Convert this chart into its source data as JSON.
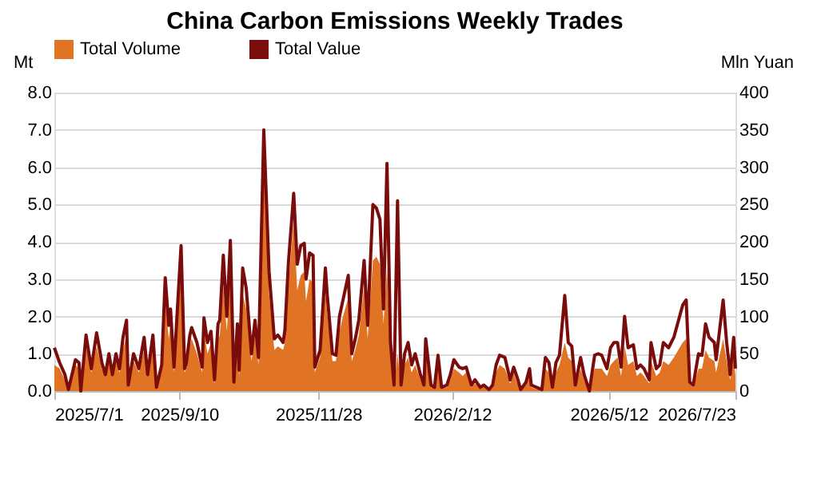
{
  "chart_data": {
    "type": "area",
    "title": "China Carbon Emissions Weekly Trades",
    "ylabel": "Mt",
    "y2label": "Mln Yuan",
    "x": [
      "2025-07-01",
      "2025-07-04",
      "2025-07-07",
      "2025-07-09",
      "2025-07-11",
      "2025-07-13",
      "2025-07-15",
      "2025-07-16",
      "2025-07-19",
      "2025-07-22",
      "2025-07-25",
      "2025-07-28",
      "2025-07-30",
      "2025-08-01",
      "2025-08-03",
      "2025-08-05",
      "2025-08-07",
      "2025-08-09",
      "2025-08-11",
      "2025-08-12",
      "2025-08-15",
      "2025-08-18",
      "2025-08-21",
      "2025-08-23",
      "2025-08-26",
      "2025-08-28",
      "2025-08-31",
      "2025-09-02",
      "2025-09-04",
      "2025-09-05",
      "2025-09-07",
      "2025-09-11",
      "2025-09-13",
      "2025-09-14",
      "2025-09-16",
      "2025-09-17",
      "2025-09-20",
      "2025-09-23",
      "2025-09-24",
      "2025-09-26",
      "2025-09-28",
      "2025-09-30",
      "2025-10-02",
      "2025-10-03",
      "2025-10-05",
      "2025-10-07",
      "2025-10-09",
      "2025-10-11",
      "2025-10-13",
      "2025-10-14",
      "2025-10-16",
      "2025-10-18",
      "2025-10-21",
      "2025-10-23",
      "2025-10-25",
      "2025-10-28",
      "2025-10-31",
      "2025-11-03",
      "2025-11-05",
      "2025-11-08",
      "2025-11-09",
      "2025-11-11",
      "2025-11-14",
      "2025-11-16",
      "2025-11-18",
      "2025-11-20",
      "2025-11-21",
      "2025-11-23",
      "2025-11-25",
      "2025-11-26",
      "2025-11-29",
      "2025-12-02",
      "2025-12-03",
      "2025-12-06",
      "2025-12-08",
      "2025-12-10",
      "2025-12-12",
      "2025-12-15",
      "2025-12-17",
      "2025-12-19",
      "2025-12-21",
      "2025-12-24",
      "2025-12-26",
      "2025-12-29",
      "2025-12-31",
      "2026-01-02",
      "2026-01-04",
      "2026-01-06",
      "2026-01-08",
      "2026-01-10",
      "2026-01-12",
      "2026-01-14",
      "2026-01-16",
      "2026-01-18",
      "2026-01-20",
      "2026-01-22",
      "2026-01-25",
      "2026-01-27",
      "2026-01-28",
      "2026-01-31",
      "2026-02-02",
      "2026-02-04",
      "2026-02-06",
      "2026-02-09",
      "2026-02-11",
      "2026-02-13",
      "2026-02-16",
      "2026-02-18",
      "2026-02-20",
      "2026-02-23",
      "2026-02-25",
      "2026-02-28",
      "2026-03-02",
      "2026-03-05",
      "2026-03-07",
      "2026-03-09",
      "2026-03-11",
      "2026-03-14",
      "2026-03-17",
      "2026-03-19",
      "2026-03-21",
      "2026-03-23",
      "2026-03-26",
      "2026-03-28",
      "2026-03-29",
      "2026-04-01",
      "2026-04-04",
      "2026-04-06",
      "2026-04-08",
      "2026-04-10",
      "2026-04-12",
      "2026-04-14",
      "2026-04-17",
      "2026-04-19",
      "2026-04-21",
      "2026-04-23",
      "2026-04-26",
      "2026-04-28",
      "2026-05-01",
      "2026-05-04",
      "2026-05-06",
      "2026-05-08",
      "2026-05-11",
      "2026-05-13",
      "2026-05-15",
      "2026-05-17",
      "2026-05-19",
      "2026-05-21",
      "2026-05-23",
      "2026-05-26",
      "2026-05-28",
      "2026-05-30",
      "2026-06-01",
      "2026-06-04",
      "2026-06-05",
      "2026-06-08",
      "2026-06-10",
      "2026-06-12",
      "2026-06-15",
      "2026-06-18",
      "2026-06-23",
      "2026-06-25",
      "2026-06-27",
      "2026-06-29",
      "2026-07-02",
      "2026-07-04",
      "2026-07-06",
      "2026-07-08",
      "2026-07-11",
      "2026-07-12",
      "2026-07-16",
      "2026-07-18",
      "2026-07-20",
      "2026-07-22",
      "2026-07-23"
    ],
    "series": [
      {
        "name": "Total Volume",
        "type": "area",
        "color": "#e07324",
        "values": [
          0.7,
          0.6,
          0.3,
          0.05,
          0.4,
          0.7,
          0.6,
          0,
          1.2,
          0.5,
          1.2,
          0.6,
          0.4,
          0.8,
          0.4,
          0.8,
          0.5,
          1.1,
          1.5,
          0.1,
          0.8,
          0.5,
          1.1,
          0.4,
          1.2,
          0.1,
          0.6,
          2.4,
          1.4,
          1.8,
          0.5,
          3.2,
          0.5,
          0.6,
          1.2,
          1.4,
          1.0,
          0.5,
          1.6,
          1.0,
          1.3,
          0.2,
          1.4,
          1.5,
          2.8,
          1.6,
          3.2,
          0.2,
          1.4,
          0.4,
          2.6,
          2.2,
          0.8,
          1.5,
          0.7,
          6.8,
          2.6,
          1.1,
          1.2,
          1.1,
          1.3,
          2.8,
          4.6,
          2.7,
          3.1,
          3.2,
          2.4,
          3.0,
          2.9,
          0.5,
          0.9,
          2.7,
          2.1,
          0.8,
          0.8,
          1.6,
          2.0,
          2.5,
          0.8,
          1.1,
          1.5,
          2.8,
          1.4,
          3.5,
          3.6,
          3.4,
          1.8,
          3.3,
          1.0,
          0.1,
          1.0,
          0.1,
          0.7,
          0.9,
          0.5,
          0.7,
          0.3,
          0.1,
          1.0,
          0.1,
          0.1,
          0.7,
          0.1,
          0.1,
          0.3,
          0.6,
          0.5,
          0.4,
          0.5,
          0.1,
          0.2,
          0.1,
          0.1,
          0.05,
          0.1,
          0.5,
          0.7,
          0.6,
          0.2,
          0.5,
          0.2,
          0.05,
          0.2,
          0.5,
          0.1,
          0.05,
          0.05,
          0.6,
          0.5,
          0.1,
          0.5,
          0.7,
          1.3,
          0.9,
          0.8,
          0.1,
          0.6,
          0.3,
          0,
          0.6,
          0.6,
          0.6,
          0.4,
          0.7,
          0.8,
          0.9,
          0.4,
          1.2,
          0.7,
          0.8,
          0.4,
          0.5,
          0.4,
          0.2,
          0.8,
          0.4,
          0.5,
          0.8,
          0.7,
          0.9,
          1.3,
          1.4,
          0.2,
          0.1,
          0.6,
          0.6,
          1.1,
          0.9,
          0.8,
          0.5,
          1.4,
          0.8,
          0.3,
          0.9,
          0.4
        ]
      },
      {
        "name": "Total Value",
        "type": "line",
        "axis": "y2",
        "color": "#7a0c0c",
        "values": [
          58,
          38,
          22,
          2,
          22,
          42,
          38,
          0,
          75,
          30,
          78,
          38,
          22,
          50,
          22,
          50,
          30,
          72,
          95,
          8,
          50,
          30,
          72,
          22,
          75,
          5,
          35,
          152,
          88,
          110,
          32,
          195,
          30,
          38,
          75,
          85,
          65,
          32,
          98,
          65,
          80,
          15,
          90,
          95,
          182,
          100,
          202,
          12,
          90,
          28,
          165,
          138,
          50,
          95,
          45,
          350,
          160,
          70,
          75,
          65,
          82,
          172,
          265,
          170,
          195,
          198,
          150,
          185,
          182,
          32,
          55,
          165,
          130,
          50,
          48,
          100,
          122,
          155,
          50,
          70,
          95,
          175,
          88,
          250,
          245,
          230,
          110,
          305,
          65,
          8,
          255,
          8,
          50,
          65,
          35,
          50,
          22,
          8,
          70,
          8,
          5,
          48,
          5,
          8,
          22,
          42,
          32,
          30,
          32,
          8,
          15,
          5,
          8,
          2,
          8,
          35,
          48,
          45,
          15,
          32,
          18,
          2,
          12,
          30,
          8,
          5,
          2,
          45,
          38,
          5,
          38,
          48,
          128,
          65,
          60,
          8,
          45,
          22,
          0,
          48,
          50,
          48,
          30,
          58,
          65,
          65,
          32,
          100,
          58,
          62,
          30,
          35,
          30,
          15,
          65,
          30,
          35,
          65,
          58,
          72,
          115,
          122,
          12,
          8,
          50,
          48,
          90,
          72,
          65,
          42,
          122,
          65,
          22,
          72,
          30
        ]
      }
    ],
    "xlim": [
      "2025-07-01",
      "2026-07-23"
    ],
    "xticks": [
      {
        "value": "2025-07-01",
        "label": "2025/7/1"
      },
      {
        "value": "2025-09-10",
        "label": "2025/9/10"
      },
      {
        "value": "2025-11-28",
        "label": "2025/11/28"
      },
      {
        "value": "2026-02-12",
        "label": "2026/2/12"
      },
      {
        "value": "2026-05-12",
        "label": "2026/5/12"
      },
      {
        "value": "2026-07-23",
        "label": "2026/7/23"
      }
    ],
    "ylim": [
      0,
      8
    ],
    "yticks": [
      {
        "value": 0,
        "label": "0.0"
      },
      {
        "value": 1,
        "label": "1.0"
      },
      {
        "value": 2,
        "label": "2.0"
      },
      {
        "value": 3,
        "label": "3.0"
      },
      {
        "value": 4,
        "label": "4.0"
      },
      {
        "value": 5,
        "label": "5.0"
      },
      {
        "value": 6,
        "label": "6.0"
      },
      {
        "value": 7,
        "label": "7.0"
      },
      {
        "value": 8,
        "label": "8.0"
      }
    ],
    "y2lim": [
      0,
      400
    ],
    "y2ticks": [
      0,
      50,
      100,
      150,
      200,
      250,
      300,
      350,
      400
    ],
    "grid": "y",
    "legend": "top",
    "line_style": "solid",
    "marker": "none"
  }
}
